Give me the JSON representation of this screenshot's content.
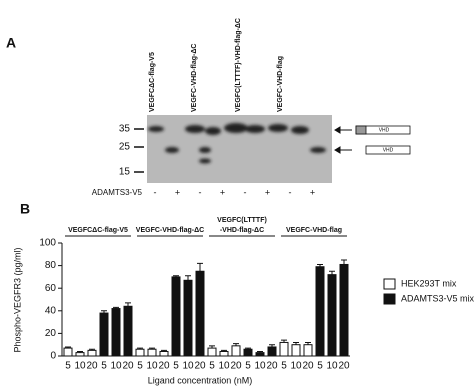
{
  "panel_a": {
    "letter": "A",
    "lanes": [
      "VEGFCΔC-flag-V5",
      "VEGFC-VHD-flag-ΔC",
      "VEGFC(LTTTF)-VHD-flag-ΔC",
      "VEGFC-VHD-flag"
    ],
    "markers": [
      35,
      25,
      15
    ],
    "treatment": "ADAMTS3-V5",
    "signs": [
      "-",
      "+",
      "-",
      "+",
      "-",
      "+",
      "-",
      "+"
    ],
    "schematic": [
      "VHD",
      "VHD"
    ]
  },
  "chart_data": {
    "type": "bar",
    "panel": "B",
    "y_label": "Phospho-VEGFR3 (pg/ml)",
    "x_label": "Ligand concentration (nM)",
    "groups": [
      [
        "VEGFCΔC-flag-V5"
      ],
      [
        "VEGFC-VHD-flag-ΔC"
      ],
      [
        "VEGFC(LTTTF)",
        "-VHD-flag-ΔC"
      ],
      [
        "VEGFC-VHD-flag"
      ]
    ],
    "categories": [
      "5",
      "10",
      "20",
      "5",
      "10",
      "20",
      "5",
      "10",
      "20",
      "5",
      "10",
      "20",
      "5",
      "10",
      "20",
      "5",
      "10",
      "20",
      "5",
      "10",
      "20",
      "5",
      "10",
      "20"
    ],
    "series": [
      {
        "name": "HEK293T mix",
        "color": "#ffffff",
        "values": [
          7,
          3,
          5,
          null,
          null,
          null,
          6,
          6,
          4,
          null,
          null,
          null,
          7,
          4,
          9,
          null,
          null,
          null,
          12,
          10,
          10,
          null,
          null,
          null
        ],
        "errors": [
          1,
          1,
          1,
          null,
          null,
          null,
          1,
          1,
          1,
          null,
          null,
          null,
          2,
          1,
          2,
          null,
          null,
          null,
          2,
          2,
          2,
          null,
          null,
          null
        ]
      },
      {
        "name": "ADAMTS3-V5 mix",
        "color": "#111111",
        "values": [
          null,
          null,
          null,
          38,
          42,
          44,
          null,
          null,
          null,
          70,
          67,
          75,
          null,
          null,
          null,
          6,
          3,
          8,
          null,
          null,
          null,
          79,
          72,
          81
        ],
        "errors": [
          null,
          null,
          null,
          2,
          1,
          3,
          null,
          null,
          null,
          1,
          4,
          7,
          null,
          null,
          null,
          1,
          1,
          2,
          null,
          null,
          null,
          2,
          3,
          4
        ]
      }
    ],
    "ylim": [
      0,
      100
    ],
    "yticks": [
      0,
      20,
      40,
      60,
      80,
      100
    ],
    "legend": "right"
  }
}
